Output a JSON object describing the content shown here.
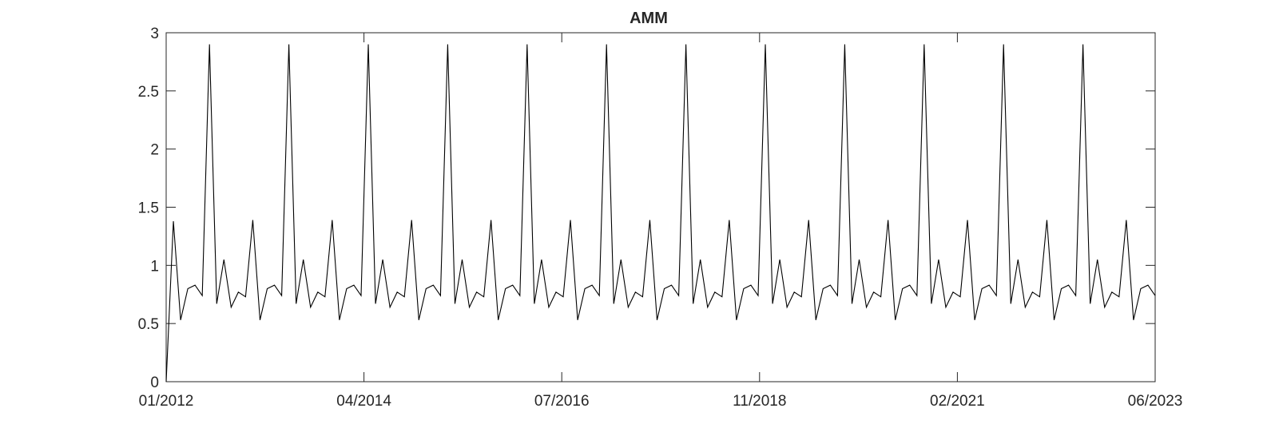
{
  "chart_data": {
    "type": "line",
    "title": "AMM",
    "xlabel": "",
    "ylabel": "",
    "x_start": "01/2012",
    "x_end": "06/2023",
    "x_ticks": [
      "01/2012",
      "04/2014",
      "07/2016",
      "11/2018",
      "02/2021",
      "06/2023"
    ],
    "y_ticks": [
      "0",
      "0.5",
      "1",
      "1.5",
      "2",
      "2.5",
      "3"
    ],
    "ylim": [
      0,
      3
    ],
    "grid": false,
    "legend": "none",
    "line_color": "#000000",
    "pattern_values": [
      1.38,
      0.53,
      0.8,
      0.83,
      0.74,
      2.9,
      0.67,
      1.05,
      0.64,
      0.77,
      0.73,
      1.39
    ],
    "series": [
      {
        "values": [
          0,
          1.38,
          0.53,
          0.8,
          0.83,
          0.74,
          2.9,
          0.67,
          1.05,
          0.64,
          0.77,
          0.73,
          1.39,
          0.53,
          0.8,
          0.83,
          0.74,
          2.9,
          0.67,
          1.05,
          0.64,
          0.77,
          0.73,
          1.39,
          0.53,
          0.8,
          0.83,
          0.74,
          2.9,
          0.67,
          1.05,
          0.64,
          0.77,
          0.73,
          1.39,
          0.53,
          0.8,
          0.83,
          0.74,
          2.9,
          0.67,
          1.05,
          0.64,
          0.77,
          0.73,
          1.39,
          0.53,
          0.8,
          0.83,
          0.74,
          2.9,
          0.67,
          1.05,
          0.64,
          0.77,
          0.73,
          1.39,
          0.53,
          0.8,
          0.83,
          0.74,
          2.9,
          0.67,
          1.05,
          0.64,
          0.77,
          0.73,
          1.39,
          0.53,
          0.8,
          0.83,
          0.74,
          2.9,
          0.67,
          1.05,
          0.64,
          0.77,
          0.73,
          1.39,
          0.53,
          0.8,
          0.83,
          0.74,
          2.9,
          0.67,
          1.05,
          0.64,
          0.77,
          0.73,
          1.39,
          0.53,
          0.8,
          0.83,
          0.74,
          2.9,
          0.67,
          1.05,
          0.64,
          0.77,
          0.73,
          1.39,
          0.53,
          0.8,
          0.83,
          0.74,
          2.9,
          0.67,
          1.05,
          0.64,
          0.77,
          0.73,
          1.39,
          0.53,
          0.8,
          0.83,
          0.74,
          2.9,
          0.67,
          1.05,
          0.64,
          0.77,
          0.73,
          1.39,
          0.53,
          0.8,
          0.83,
          0.74,
          2.9,
          0.67,
          1.05,
          0.64,
          0.77,
          0.73,
          1.39,
          0.53,
          0.8,
          0.83,
          0.74
        ]
      }
    ]
  }
}
